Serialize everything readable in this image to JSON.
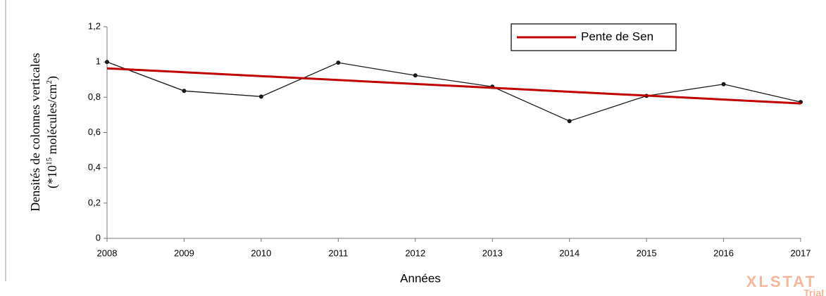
{
  "chart_data": {
    "type": "line",
    "x_label": "Années",
    "y_label": {
      "line1": "Densités de colonnes verticales",
      "line2": [
        "(*10",
        "15",
        " molécules/cm",
        "2",
        ")"
      ]
    },
    "x": [
      2008,
      2009,
      2010,
      2011,
      2012,
      2013,
      2014,
      2015,
      2016,
      2017
    ],
    "xlim": [
      2008,
      2017
    ],
    "xticks": [
      2008,
      2009,
      2010,
      2011,
      2012,
      2013,
      2014,
      2015,
      2016,
      2017
    ],
    "ylim": [
      0,
      1.2
    ],
    "yticks": [
      0,
      {
        "value": 0.2,
        "label": "0,2"
      },
      {
        "value": 0.4,
        "label": "0,4"
      },
      {
        "value": 0.6,
        "label": "0,6"
      },
      {
        "value": 0.8,
        "label": "0,8"
      },
      1,
      {
        "value": 1.2,
        "label": "1,2"
      }
    ],
    "grid": false,
    "legend": "top-right",
    "series": [
      {
        "color": "#1a1a1a",
        "markers": true,
        "values": [
          1.0,
          0.836,
          0.804,
          0.996,
          0.924,
          0.86,
          0.665,
          0.808,
          0.874,
          0.773
        ]
      },
      {
        "name": "Pente de Sen",
        "color": "#c00000",
        "markers": false,
        "x": [
          2008,
          2017
        ],
        "values": [
          0.964,
          0.765
        ]
      }
    ],
    "watermark": [
      "XLSTAT",
      "Trial"
    ]
  }
}
